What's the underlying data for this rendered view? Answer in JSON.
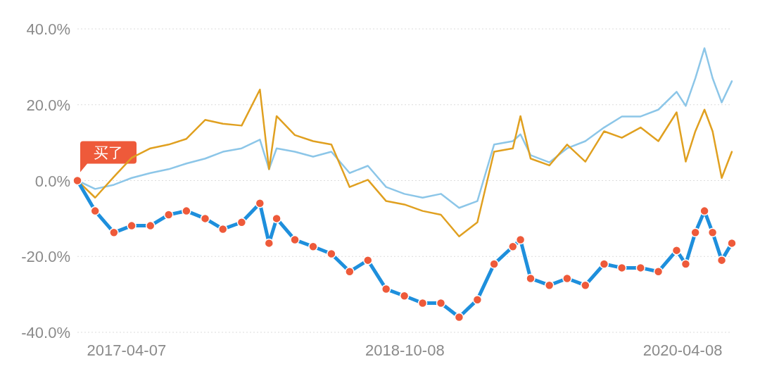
{
  "chart_data": {
    "type": "line",
    "x": [
      "2016-12-31",
      "2017-02-04",
      "2017-03-13",
      "2017-04-17",
      "2017-05-24",
      "2017-06-29",
      "2017-08-03",
      "2017-09-09",
      "2017-10-14",
      "2017-11-20",
      "2017-12-26",
      "2018-01-13",
      "2018-01-28",
      "2018-03-05",
      "2018-04-10",
      "2018-05-16",
      "2018-06-21",
      "2018-07-27",
      "2018-09-01",
      "2018-10-07",
      "2018-11-12",
      "2018-12-18",
      "2019-01-23",
      "2019-02-28",
      "2019-04-02",
      "2019-05-09",
      "2019-05-24",
      "2019-06-13",
      "2019-07-20",
      "2019-08-24",
      "2019-09-29",
      "2019-11-05",
      "2019-12-10",
      "2020-01-16",
      "2020-02-20",
      "2020-03-27",
      "2020-04-14",
      "2020-05-03",
      "2020-05-21",
      "2020-06-06",
      "2020-06-24",
      "2020-07-14"
    ],
    "series": [
      {
        "color": "#8cc6e8",
        "values": [
          0,
          -2.2,
          -1.1,
          0.7,
          2,
          3,
          4.5,
          5.8,
          7.6,
          8.5,
          10.8,
          3,
          8.5,
          7.6,
          6.3,
          7.6,
          2,
          3.9,
          -1.7,
          -3.5,
          -4.5,
          -3.5,
          -7.2,
          -5.4,
          9.5,
          10.4,
          12.2,
          6.7,
          4.8,
          8.5,
          10.4,
          14,
          16.9,
          16.9,
          18.7,
          23.4,
          19.7,
          27,
          34.9,
          27,
          20.6,
          26.2
        ]
      },
      {
        "color": "#e0a020",
        "values": [
          0,
          -4.5,
          1,
          6,
          8.5,
          9.5,
          11,
          16,
          15,
          14.5,
          24,
          3,
          17,
          12,
          10.4,
          9.5,
          -1.7,
          0.2,
          -5.4,
          -6.3,
          -8,
          -9,
          -14.7,
          -11,
          7.6,
          8.5,
          17,
          5.8,
          4,
          9.5,
          5,
          13,
          11.3,
          14,
          10.4,
          18,
          5,
          13,
          18.7,
          13,
          0.7,
          7.6
        ]
      },
      {
        "color": "#1e8fdc",
        "values": [
          0,
          -8,
          -13.7,
          -11.9,
          -11.9,
          -9,
          -8,
          -10,
          -12.8,
          -11,
          -6,
          -16.5,
          -10,
          -15.6,
          -17.4,
          -19.3,
          -24,
          -21,
          -28.6,
          -30.4,
          -32.3,
          -32.3,
          -36,
          -31.4,
          -22,
          -17.4,
          -15.6,
          -25.8,
          -27.6,
          -25.8,
          -27.6,
          -22,
          -23,
          -23,
          -24,
          -18.4,
          -22,
          -13.7,
          -8,
          -13.7,
          -21,
          -16.5
        ]
      },
      {
        "type": "scatter",
        "color": "#ee5a3a",
        "values": [
          0,
          -8,
          -13.7,
          -11.9,
          -11.9,
          -9,
          -8,
          -10,
          -12.8,
          -11,
          -6,
          -16.5,
          -10,
          -15.6,
          -17.4,
          -19.3,
          -24,
          -21,
          -28.6,
          -30.4,
          -32.3,
          -32.3,
          -36,
          -31.4,
          -22,
          -17.4,
          -15.6,
          -25.8,
          -27.6,
          -25.8,
          -27.6,
          -22,
          -23,
          -23,
          -24,
          -18.4,
          -22,
          -13.7,
          -8,
          -13.7,
          -21,
          -16.5
        ]
      }
    ],
    "xlim": [
      "2016-12-31",
      "2020-07-14"
    ],
    "xticks": [
      "2017-04-07",
      "2018-10-08",
      "2020-04-08"
    ],
    "ylim": [
      -40,
      40
    ],
    "yticks": [
      {
        "value": -40,
        "label": "-40.0%"
      },
      {
        "value": 0,
        "label": "0.0%"
      },
      {
        "value": 20,
        "label": "20.0%"
      },
      {
        "value": -20,
        "label": "-20.0%"
      },
      {
        "value": 40,
        "label": "40.0%"
      }
    ],
    "grid": "y",
    "annotations": [
      {
        "text": "买了",
        "x": "2016-12-31",
        "y": 0
      }
    ]
  }
}
